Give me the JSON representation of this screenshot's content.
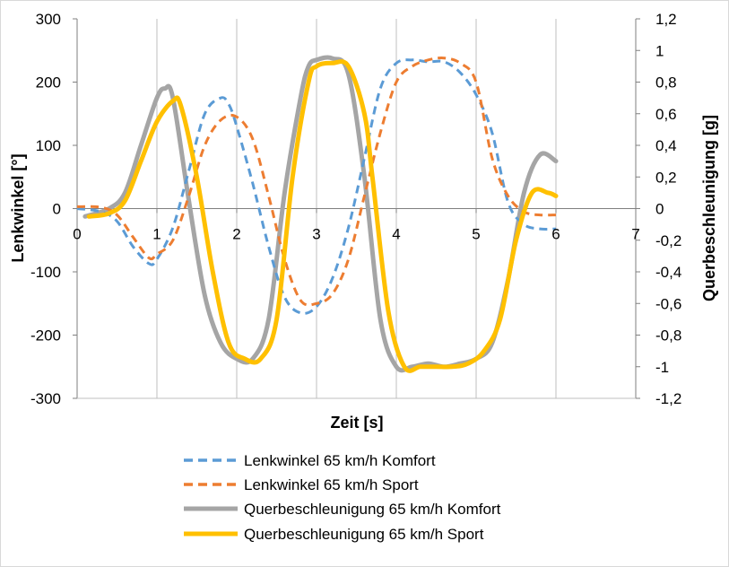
{
  "chart_data": {
    "type": "line",
    "title": "",
    "xlabel": "Zeit [s]",
    "ylabel_left": "Lenkwinkel [°]",
    "ylabel_right": "Querbeschleunigung [g]",
    "xlim": [
      0,
      7
    ],
    "ylim_left": [
      -300,
      300
    ],
    "ylim_right": [
      -1.2,
      1.2
    ],
    "x_ticks": [
      "0",
      "1",
      "2",
      "3",
      "4",
      "5",
      "6",
      "7"
    ],
    "y_ticks_left": [
      "300",
      "200",
      "100",
      "0",
      "-100",
      "-200",
      "-300"
    ],
    "y_ticks_right": [
      "1,2",
      "1",
      "0,8",
      "0,6",
      "0,4",
      "0,2",
      "0",
      "-0,2",
      "-0,4",
      "-0,6",
      "-0,8",
      "-1",
      "-1,2"
    ],
    "grid": "vertical",
    "legend_position": "bottom",
    "series": [
      {
        "name": "Lenkwinkel 65 km/h Komfort",
        "axis": "left",
        "style": "dashed",
        "color": "#5B9BD5",
        "x": [
          0,
          0.3,
          0.5,
          0.7,
          0.9,
          1.0,
          1.2,
          1.4,
          1.6,
          1.8,
          1.9,
          2.0,
          2.2,
          2.4,
          2.6,
          2.8,
          3.0,
          3.2,
          3.4,
          3.6,
          3.8,
          4.0,
          4.2,
          4.4,
          4.6,
          4.8,
          5.0,
          5.2,
          5.4,
          5.6,
          5.8,
          6.0
        ],
        "values": [
          0,
          -5,
          -20,
          -60,
          -87,
          -80,
          -30,
          60,
          150,
          175,
          165,
          130,
          40,
          -60,
          -140,
          -165,
          -155,
          -110,
          -30,
          80,
          190,
          230,
          235,
          232,
          232,
          215,
          180,
          120,
          10,
          -25,
          -32,
          -32
        ]
      },
      {
        "name": "Lenkwinkel 65 km/h Sport",
        "axis": "left",
        "style": "dashed",
        "color": "#ED7D31",
        "x": [
          0,
          0.3,
          0.5,
          0.7,
          0.9,
          1.0,
          1.2,
          1.4,
          1.6,
          1.8,
          2.0,
          2.2,
          2.4,
          2.6,
          2.8,
          3.0,
          3.2,
          3.4,
          3.6,
          3.8,
          4.0,
          4.2,
          4.4,
          4.6,
          4.8,
          5.0,
          5.2,
          5.4,
          5.6,
          5.8,
          6.0
        ],
        "values": [
          3,
          2,
          -10,
          -45,
          -78,
          -72,
          -50,
          20,
          100,
          140,
          145,
          110,
          20,
          -80,
          -145,
          -150,
          -135,
          -80,
          20,
          120,
          200,
          225,
          235,
          238,
          230,
          200,
          80,
          20,
          -5,
          -10,
          -10
        ]
      },
      {
        "name": "Querbeschleunigung 65 km/h Komfort",
        "axis": "right",
        "style": "solid",
        "color": "#A5A5A5",
        "x": [
          0.1,
          0.4,
          0.6,
          0.8,
          1.0,
          1.1,
          1.2,
          1.4,
          1.6,
          1.8,
          2.0,
          2.2,
          2.4,
          2.6,
          2.8,
          2.9,
          3.0,
          3.2,
          3.4,
          3.6,
          3.8,
          4.0,
          4.2,
          4.4,
          4.6,
          4.8,
          5.0,
          5.2,
          5.4,
          5.6,
          5.8,
          6.0
        ],
        "values": [
          -0.05,
          0.0,
          0.1,
          0.4,
          0.7,
          0.76,
          0.7,
          0.05,
          -0.55,
          -0.85,
          -0.95,
          -0.95,
          -0.7,
          0.1,
          0.7,
          0.9,
          0.94,
          0.95,
          0.85,
          0.2,
          -0.7,
          -1.0,
          -1.0,
          -0.98,
          -1.0,
          -0.98,
          -0.95,
          -0.85,
          -0.45,
          0.1,
          0.34,
          0.3
        ]
      },
      {
        "name": "Querbeschleunigung 65 km/h Sport",
        "axis": "right",
        "style": "solid",
        "color": "#FFC000",
        "x": [
          0.15,
          0.4,
          0.6,
          0.8,
          1.0,
          1.2,
          1.3,
          1.5,
          1.7,
          1.9,
          2.1,
          2.3,
          2.5,
          2.7,
          2.9,
          3.0,
          3.2,
          3.4,
          3.6,
          3.7,
          3.9,
          4.1,
          4.3,
          4.5,
          4.7,
          4.9,
          5.1,
          5.3,
          5.5,
          5.7,
          5.9,
          6.0
        ],
        "values": [
          -0.05,
          -0.03,
          0.05,
          0.3,
          0.55,
          0.68,
          0.65,
          0.2,
          -0.4,
          -0.85,
          -0.95,
          -0.95,
          -0.7,
          0.2,
          0.8,
          0.9,
          0.92,
          0.9,
          0.6,
          0.2,
          -0.65,
          -1.0,
          -1.0,
          -1.0,
          -1.0,
          -0.98,
          -0.9,
          -0.7,
          -0.2,
          0.1,
          0.1,
          0.08
        ]
      }
    ]
  }
}
